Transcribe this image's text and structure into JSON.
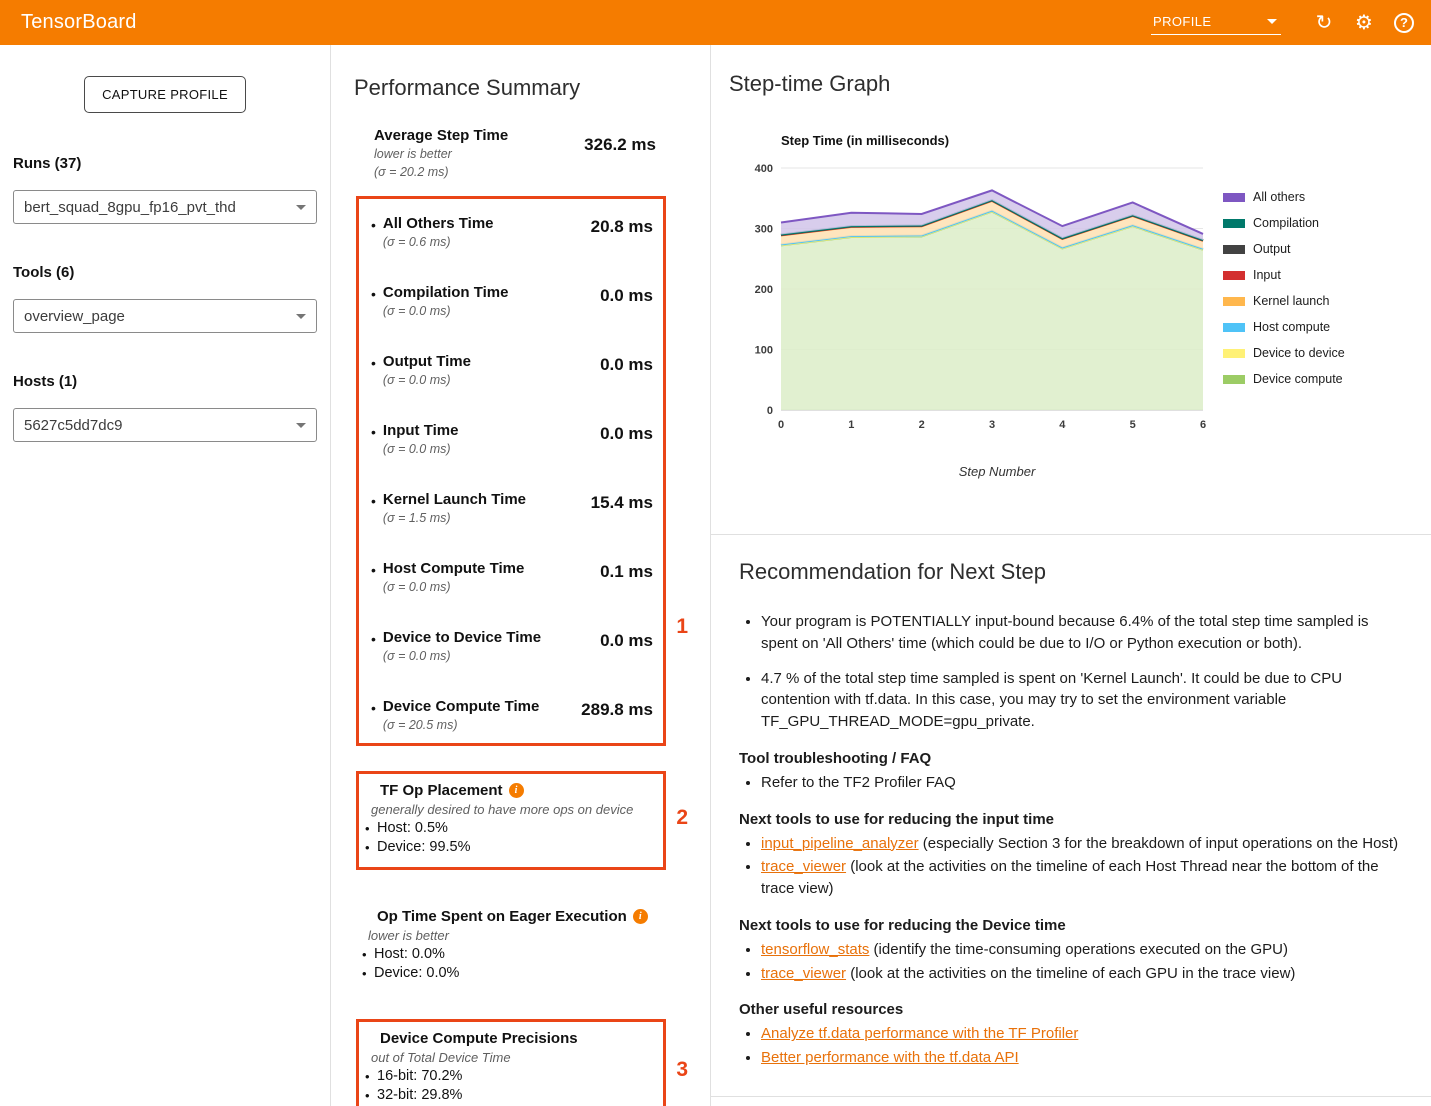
{
  "header": {
    "title": "TensorBoard",
    "dashboard": "PROFILE"
  },
  "sidebar": {
    "capture_button": "CAPTURE PROFILE",
    "runs": {
      "label": "Runs (37)",
      "value": "bert_squad_8gpu_fp16_pvt_thd"
    },
    "tools": {
      "label": "Tools (6)",
      "value": "overview_page"
    },
    "hosts": {
      "label": "Hosts (1)",
      "value": "5627c5dd7dc9"
    }
  },
  "summary": {
    "title": "Performance Summary",
    "average": {
      "label": "Average Step Time",
      "note": "lower is better",
      "sigma": "(σ = 20.2 ms)",
      "value": "326.2 ms"
    },
    "metrics": [
      {
        "label": "All Others Time",
        "sigma": "(σ = 0.6 ms)",
        "value": "20.8 ms"
      },
      {
        "label": "Compilation Time",
        "sigma": "(σ = 0.0 ms)",
        "value": "0.0 ms"
      },
      {
        "label": "Output Time",
        "sigma": "(σ = 0.0 ms)",
        "value": "0.0 ms"
      },
      {
        "label": "Input Time",
        "sigma": "(σ = 0.0 ms)",
        "value": "0.0 ms"
      },
      {
        "label": "Kernel Launch Time",
        "sigma": "(σ = 1.5 ms)",
        "value": "15.4 ms"
      },
      {
        "label": "Host Compute Time",
        "sigma": "(σ = 0.0 ms)",
        "value": "0.1 ms"
      },
      {
        "label": "Device to Device Time",
        "sigma": "(σ = 0.0 ms)",
        "value": "0.0 ms"
      },
      {
        "label": "Device Compute Time",
        "sigma": "(σ = 20.5 ms)",
        "value": "289.8 ms"
      }
    ],
    "annotations": {
      "box1": "1",
      "box2": "2",
      "box3": "3"
    },
    "tf_op_placement": {
      "title": "TF Op Placement",
      "note": "generally desired to have more ops on device",
      "items": [
        "Host: 0.5%",
        "Device: 99.5%"
      ]
    },
    "eager": {
      "title": "Op Time Spent on Eager Execution",
      "note": "lower is better",
      "items": [
        "Host: 0.0%",
        "Device: 0.0%"
      ]
    },
    "precisions": {
      "title": "Device Compute Precisions",
      "note": "out of Total Device Time",
      "items": [
        "16-bit: 70.2%",
        "32-bit: 29.8%"
      ]
    }
  },
  "step_graph": {
    "title": "Step-time Graph"
  },
  "chart_data": {
    "type": "area",
    "stacked": true,
    "title": "Step Time (in milliseconds)",
    "xlabel": "Step Number",
    "x": [
      0,
      1,
      2,
      3,
      4,
      5,
      6
    ],
    "ylim": [
      0,
      400
    ],
    "yticks": [
      0,
      100,
      200,
      300,
      400
    ],
    "grid": true,
    "legend_position": "right",
    "series": [
      {
        "name": "Device compute",
        "color": "#9ccc65",
        "fill": "#dcedc8",
        "values": [
          272,
          286,
          287,
          328,
          267,
          304,
          265
        ]
      },
      {
        "name": "Device to device",
        "color": "#fff176",
        "fill": "#fff9c4",
        "values": [
          0.5,
          0.5,
          0.5,
          0.5,
          0.5,
          0.5,
          0.5
        ]
      },
      {
        "name": "Host compute",
        "color": "#4fc3f7",
        "fill": "#b3e5fc",
        "values": [
          1,
          1,
          1,
          1,
          1,
          1,
          1
        ]
      },
      {
        "name": "Kernel launch",
        "color": "#ffb74d",
        "fill": "#ffe0b2",
        "values": [
          15,
          15,
          15,
          16,
          14,
          15,
          13
        ]
      },
      {
        "name": "Input",
        "color": "#d32f2f",
        "fill": "#ffcdd2",
        "values": [
          0.4,
          0.4,
          0.4,
          0.4,
          0.4,
          0.4,
          0.4
        ]
      },
      {
        "name": "Output",
        "color": "#424242",
        "fill": "#e0e0e0",
        "values": [
          0.6,
          0.6,
          0.6,
          0.6,
          0.6,
          0.6,
          0.6
        ]
      },
      {
        "name": "Compilation",
        "color": "#00796b",
        "fill": "#b2dfdb",
        "values": [
          0.5,
          0.5,
          0.5,
          0.5,
          0.5,
          0.5,
          0.5
        ]
      },
      {
        "name": "All others",
        "color": "#7e57c2",
        "fill": "#d1c4e9",
        "values": [
          20,
          22,
          19,
          16,
          20,
          21,
          10
        ]
      }
    ]
  },
  "recommendation": {
    "title": "Recommendation for Next Step",
    "bullets": [
      "Your program is POTENTIALLY input-bound because 6.4% of the total step time sampled is spent on 'All Others' time (which could be due to I/O or Python execution or both).",
      "4.7 % of the total step time sampled is spent on 'Kernel Launch'. It could be due to CPU contention with tf.data. In this case, you may try to set the environment variable TF_GPU_THREAD_MODE=gpu_private."
    ],
    "sections": [
      {
        "heading": "Tool troubleshooting / FAQ",
        "items": [
          {
            "link": "",
            "text": "Refer to the TF2 Profiler FAQ"
          }
        ]
      },
      {
        "heading": "Next tools to use for reducing the input time",
        "items": [
          {
            "link": "input_pipeline_analyzer",
            "text": " (especially Section 3 for the breakdown of input operations on the Host)"
          },
          {
            "link": "trace_viewer",
            "text": " (look at the activities on the timeline of each Host Thread near the bottom of the trace view)"
          }
        ]
      },
      {
        "heading": "Next tools to use for reducing the Device time",
        "items": [
          {
            "link": "tensorflow_stats",
            "text": " (identify the time-consuming operations executed on the GPU)"
          },
          {
            "link": "trace_viewer",
            "text": " (look at the activities on the timeline of each GPU in the trace view)"
          }
        ]
      },
      {
        "heading": "Other useful resources",
        "items": [
          {
            "link": "Analyze tf.data performance with the TF Profiler",
            "text": ""
          },
          {
            "link": "Better performance with the tf.data API",
            "text": ""
          }
        ]
      }
    ]
  }
}
